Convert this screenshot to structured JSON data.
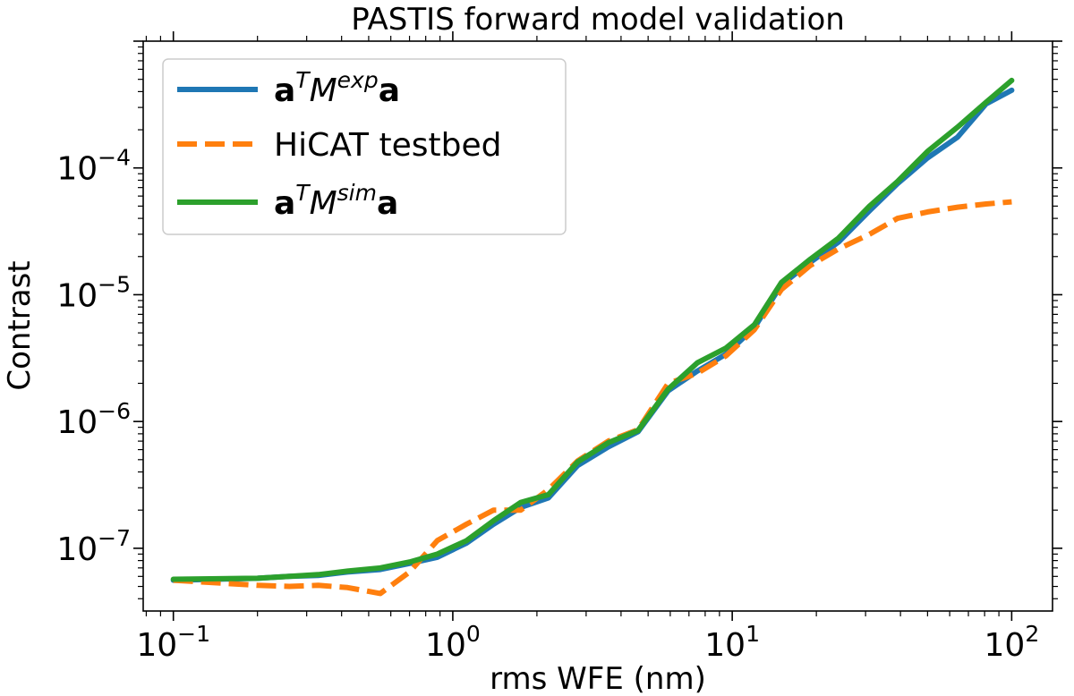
{
  "chart_data": {
    "type": "line",
    "title": "PASTIS forward model validation",
    "xlabel": "rms WFE (nm)",
    "ylabel": "Contrast",
    "xscale": "log",
    "yscale": "log",
    "xlim": [
      0.078,
      140
    ],
    "ylim": [
      3.2e-08,
      0.001
    ],
    "x_ticks": [
      {
        "value": 0.1,
        "base": "10",
        "exp": "−1"
      },
      {
        "value": 1,
        "base": "10",
        "exp": "0"
      },
      {
        "value": 10,
        "base": "10",
        "exp": "1"
      },
      {
        "value": 100,
        "base": "10",
        "exp": "2"
      }
    ],
    "y_ticks": [
      {
        "value": 1e-07,
        "base": "10",
        "exp": "−7"
      },
      {
        "value": 1e-06,
        "base": "10",
        "exp": "−6"
      },
      {
        "value": 1e-05,
        "base": "10",
        "exp": "−5"
      },
      {
        "value": 0.0001,
        "base": "10",
        "exp": "−4"
      }
    ],
    "legend_position": "top-left",
    "series": [
      {
        "name": "a^T M^exp a",
        "legend": {
          "base": "a",
          "sup1": "T",
          "mid": "M",
          "sup2": "exp",
          "tail": "a"
        },
        "color": "#1f77b4",
        "dash": "solid",
        "x": [
          0.1,
          0.2,
          0.26,
          0.33,
          0.42,
          0.55,
          0.7,
          0.88,
          1.12,
          1.4,
          1.75,
          2.2,
          2.8,
          3.6,
          4.6,
          5.9,
          7.5,
          9.5,
          12,
          15,
          19,
          24,
          31,
          39,
          50,
          64,
          81,
          100
        ],
        "y": [
          5.6e-08,
          5.8e-08,
          6e-08,
          6.1e-08,
          6.5e-08,
          6.8e-08,
          7.6e-08,
          8.5e-08,
          1.1e-07,
          1.55e-07,
          2.1e-07,
          2.5e-07,
          4.5e-07,
          6.3e-07,
          8.3e-07,
          1.75e-06,
          2.5e-06,
          3.4e-06,
          5.5e-06,
          1.2e-05,
          1.8e-05,
          2.6e-05,
          4.6e-05,
          7.5e-05,
          0.00012,
          0.000175,
          0.00032,
          0.00041
        ]
      },
      {
        "name": "HiCAT testbed",
        "legend": {
          "text": "HiCAT testbed"
        },
        "color": "#ff7f0e",
        "dash": "dashed",
        "x": [
          0.1,
          0.15,
          0.2,
          0.26,
          0.33,
          0.42,
          0.55,
          0.7,
          0.88,
          1.12,
          1.4,
          1.75,
          2.2,
          2.8,
          3.6,
          4.6,
          5.9,
          7.5,
          9.5,
          12,
          15,
          19,
          24,
          31,
          39,
          50,
          64,
          81,
          100
        ],
        "y": [
          5.6e-08,
          5.3e-08,
          5.1e-08,
          5e-08,
          5.1e-08,
          4.9e-08,
          4.4e-08,
          6.5e-08,
          1.15e-07,
          1.55e-07,
          2e-07,
          2e-07,
          2.9e-07,
          4.9e-07,
          7e-07,
          8.6e-07,
          2e-06,
          2.4e-06,
          3.3e-06,
          5.3e-06,
          1.1e-05,
          1.7e-05,
          2.3e-05,
          3e-05,
          4e-05,
          4.5e-05,
          4.9e-05,
          5.2e-05,
          5.4e-05
        ]
      },
      {
        "name": "a^T M^sim a",
        "legend": {
          "base": "a",
          "sup1": "T",
          "mid": "M",
          "sup2": "sim",
          "tail": "a"
        },
        "color": "#2ca02c",
        "dash": "solid",
        "x": [
          0.1,
          0.2,
          0.26,
          0.33,
          0.42,
          0.55,
          0.7,
          0.88,
          1.12,
          1.4,
          1.75,
          2.2,
          2.8,
          3.6,
          4.6,
          5.9,
          7.5,
          9.5,
          12,
          15,
          19,
          24,
          31,
          39,
          50,
          64,
          81,
          100
        ],
        "y": [
          5.7e-08,
          5.8e-08,
          6e-08,
          6.2e-08,
          6.6e-08,
          7e-08,
          7.8e-08,
          9e-08,
          1.15e-07,
          1.65e-07,
          2.3e-07,
          2.65e-07,
          4.8e-07,
          6.8e-07,
          8.5e-07,
          1.8e-06,
          2.9e-06,
          3.8e-06,
          5.8e-06,
          1.25e-05,
          1.9e-05,
          2.8e-05,
          5e-05,
          7.8e-05,
          0.000135,
          0.00021,
          0.00033,
          0.00049
        ]
      }
    ]
  }
}
